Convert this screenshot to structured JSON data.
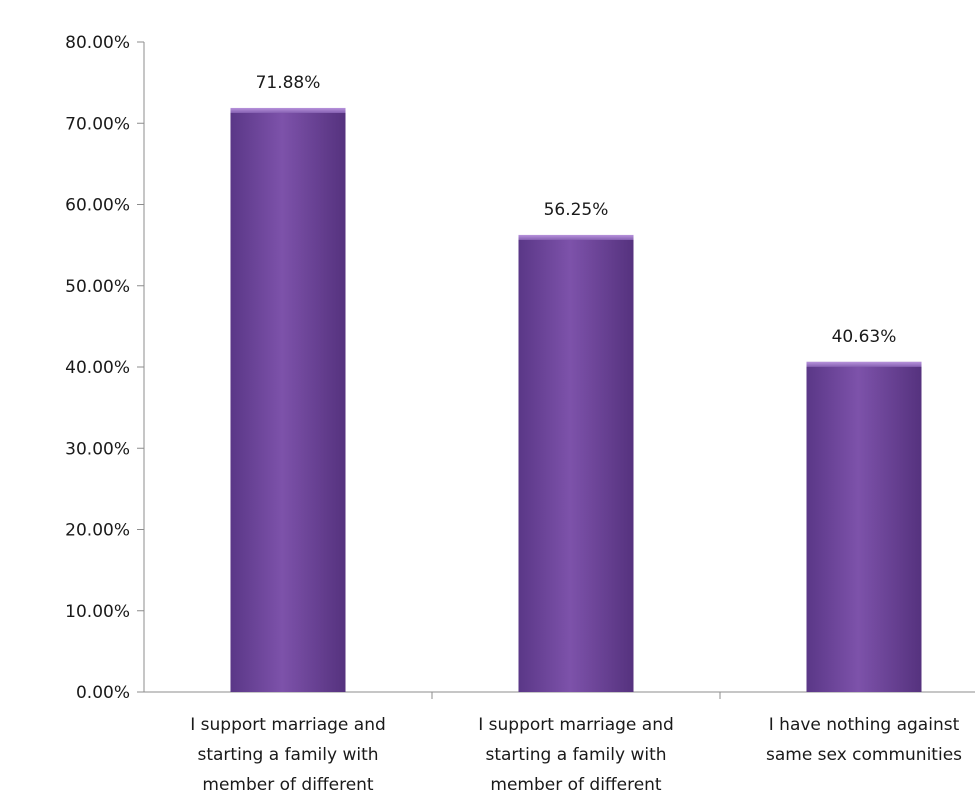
{
  "chart_data": {
    "type": "bar",
    "title": "",
    "xlabel": "",
    "ylabel": "",
    "categories": [
      [
        "I support marriage and",
        "starting a family with",
        "member of different"
      ],
      [
        "I support marriage and",
        "starting a family with",
        "member of different"
      ],
      [
        "I have nothing against",
        "same sex communities"
      ]
    ],
    "values": [
      71.88,
      56.25,
      40.63
    ],
    "value_labels": [
      "71.88%",
      "56.25%",
      "40.63%"
    ],
    "ylim": [
      0,
      80
    ],
    "yticks": [
      0,
      10,
      20,
      30,
      40,
      50,
      60,
      70,
      80
    ],
    "ytick_labels": [
      "0.00%",
      "10.00%",
      "20.00%",
      "30.00%",
      "40.00%",
      "50.00%",
      "60.00%",
      "70.00%",
      "80.00%"
    ],
    "grid": false,
    "legend": "none",
    "bar_color": "#7b4fa6"
  }
}
